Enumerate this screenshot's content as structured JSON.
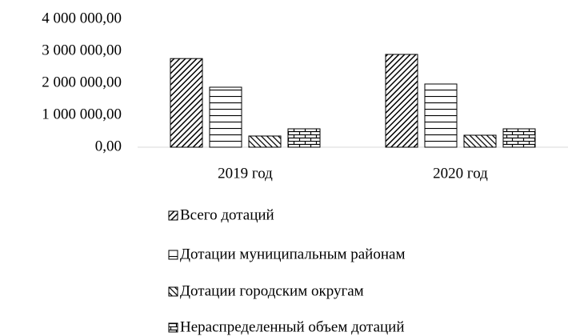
{
  "chart_data": {
    "type": "bar",
    "categories": [
      "2019 год",
      "2020 год"
    ],
    "series": [
      {
        "name": "Всего дотаций",
        "color": "#000000",
        "pattern": "diagonal-down",
        "values": [
          2770000,
          2900000
        ]
      },
      {
        "name": "Дотации муниципальным районам",
        "color": "#000000",
        "pattern": "horizontal",
        "values": [
          1875000,
          1975000
        ]
      },
      {
        "name": "Дотации городским округам",
        "color": "#000000",
        "pattern": "diagonal-up",
        "values": [
          350000,
          375000
        ]
      },
      {
        "name": "Нераспределенный объем дотаций",
        "color": "#000000",
        "pattern": "brick",
        "values": [
          575000,
          575000
        ]
      }
    ],
    "ylim": [
      0,
      4000000
    ],
    "yticks": [
      {
        "value": 0,
        "label": "0,00"
      },
      {
        "value": 1000000,
        "label": "1 000 000,00"
      },
      {
        "value": 2000000,
        "label": "2 000 000,00"
      },
      {
        "value": 3000000,
        "label": "3 000 000,00"
      },
      {
        "value": 4000000,
        "label": "4 000 000,00"
      }
    ],
    "grid": false,
    "legend": "bottom"
  }
}
